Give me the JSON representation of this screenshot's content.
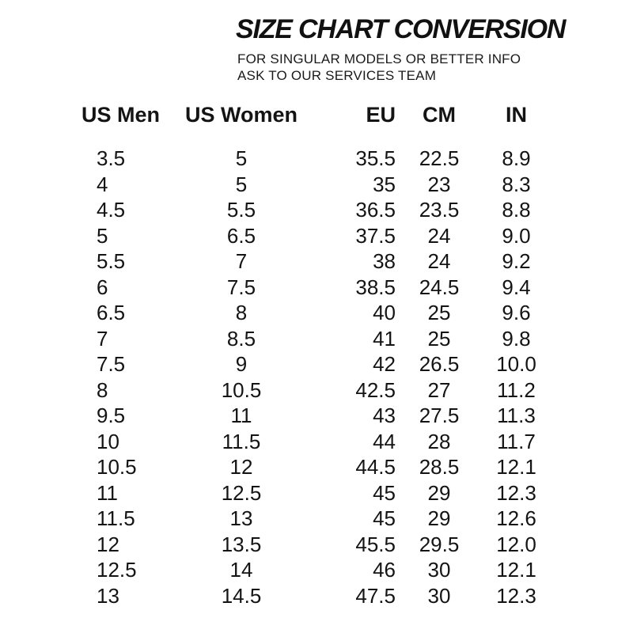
{
  "header": {
    "title": "SIZE CHART CONVERSION",
    "subtitle_line1": "FOR SINGULAR MODELS OR BETTER INFO",
    "subtitle_line2": "ASK TO OUR SERVICES TEAM"
  },
  "colors": {
    "text": "#141414",
    "background": "#ffffff"
  },
  "chart_data": {
    "type": "table",
    "title": "SIZE CHART CONVERSION",
    "columns": [
      "US Men",
      "US Women",
      "EU",
      "CM",
      "IN"
    ],
    "rows": [
      [
        "3.5",
        "5",
        "35.5",
        "22.5",
        "8.9"
      ],
      [
        "4",
        "5",
        "35",
        "23",
        "8.3"
      ],
      [
        "4.5",
        "5.5",
        "36.5",
        "23.5",
        "8.8"
      ],
      [
        "5",
        "6.5",
        "37.5",
        "24",
        "9.0"
      ],
      [
        "5.5",
        "7",
        "38",
        "24",
        "9.2"
      ],
      [
        "6",
        "7.5",
        "38.5",
        "24.5",
        "9.4"
      ],
      [
        "6.5",
        "8",
        "40",
        "25",
        "9.6"
      ],
      [
        "7",
        "8.5",
        "41",
        "25",
        "9.8"
      ],
      [
        "7.5",
        "9",
        "42",
        "26.5",
        "10.0"
      ],
      [
        "8",
        "10.5",
        "42.5",
        "27",
        "11.2"
      ],
      [
        "9.5",
        "11",
        "43",
        "27.5",
        "11.3"
      ],
      [
        "10",
        "11.5",
        "44",
        "28",
        "11.7"
      ],
      [
        "10.5",
        "12",
        "44.5",
        "28.5",
        "12.1"
      ],
      [
        "11",
        "12.5",
        "45",
        "29",
        "12.3"
      ],
      [
        "11.5",
        "13",
        "45",
        "29",
        "12.6"
      ],
      [
        "12",
        "13.5",
        "45.5",
        "29.5",
        "12.0"
      ],
      [
        "12.5",
        "14",
        "46",
        "30",
        "12.1"
      ],
      [
        "13",
        "14.5",
        "47.5",
        "30",
        "12.3"
      ]
    ]
  }
}
